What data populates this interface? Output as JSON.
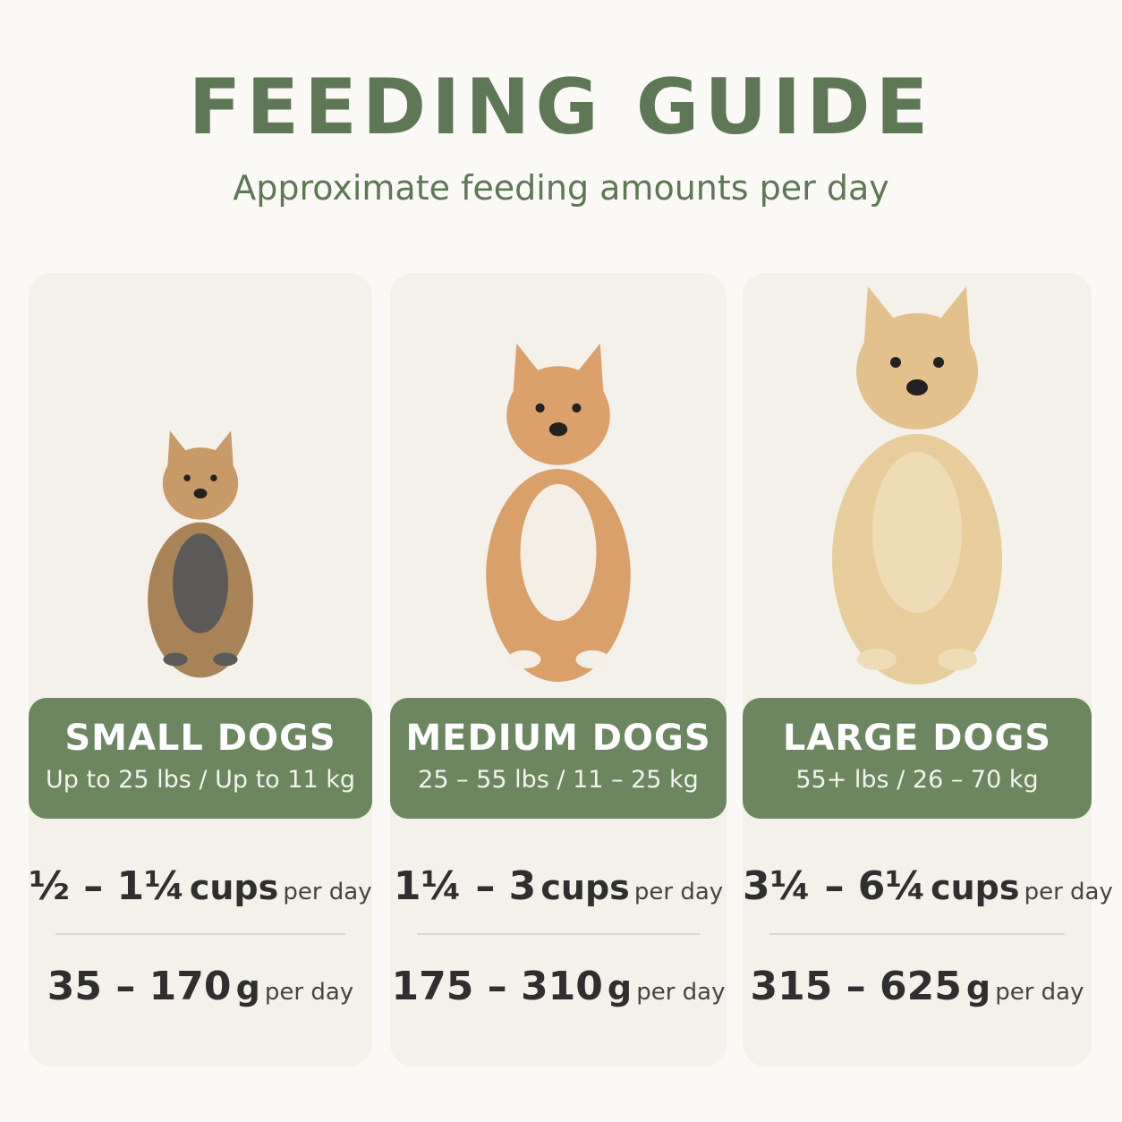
{
  "header": {
    "title": "FEEDING GUIDE",
    "subtitle": "Approximate feeding amounts per day"
  },
  "cards": [
    {
      "label": "SMALL DOGS",
      "weight": "Up to 25 lbs / Up to 11 kg",
      "cups": {
        "amount": "½ – 1¼",
        "unit": "cups",
        "suffix": "per day"
      },
      "grams": {
        "amount": "35 – 170",
        "unit": "g",
        "suffix": "per day"
      }
    },
    {
      "label": "MEDIUM DOGS",
      "weight": "25 – 55 lbs / 11 – 25 kg",
      "cups": {
        "amount": "1¼ – 3",
        "unit": "cups",
        "suffix": "per day"
      },
      "grams": {
        "amount": "175 – 310",
        "unit": "g",
        "suffix": "per day"
      }
    },
    {
      "label": "LARGE DOGS",
      "weight": "55+ lbs / 26 – 70 kg",
      "cups": {
        "amount": "3¼ – 6¼",
        "unit": "cups",
        "suffix": "per day"
      },
      "grams": {
        "amount": "315 – 625",
        "unit": "g",
        "suffix": "per day"
      }
    }
  ]
}
